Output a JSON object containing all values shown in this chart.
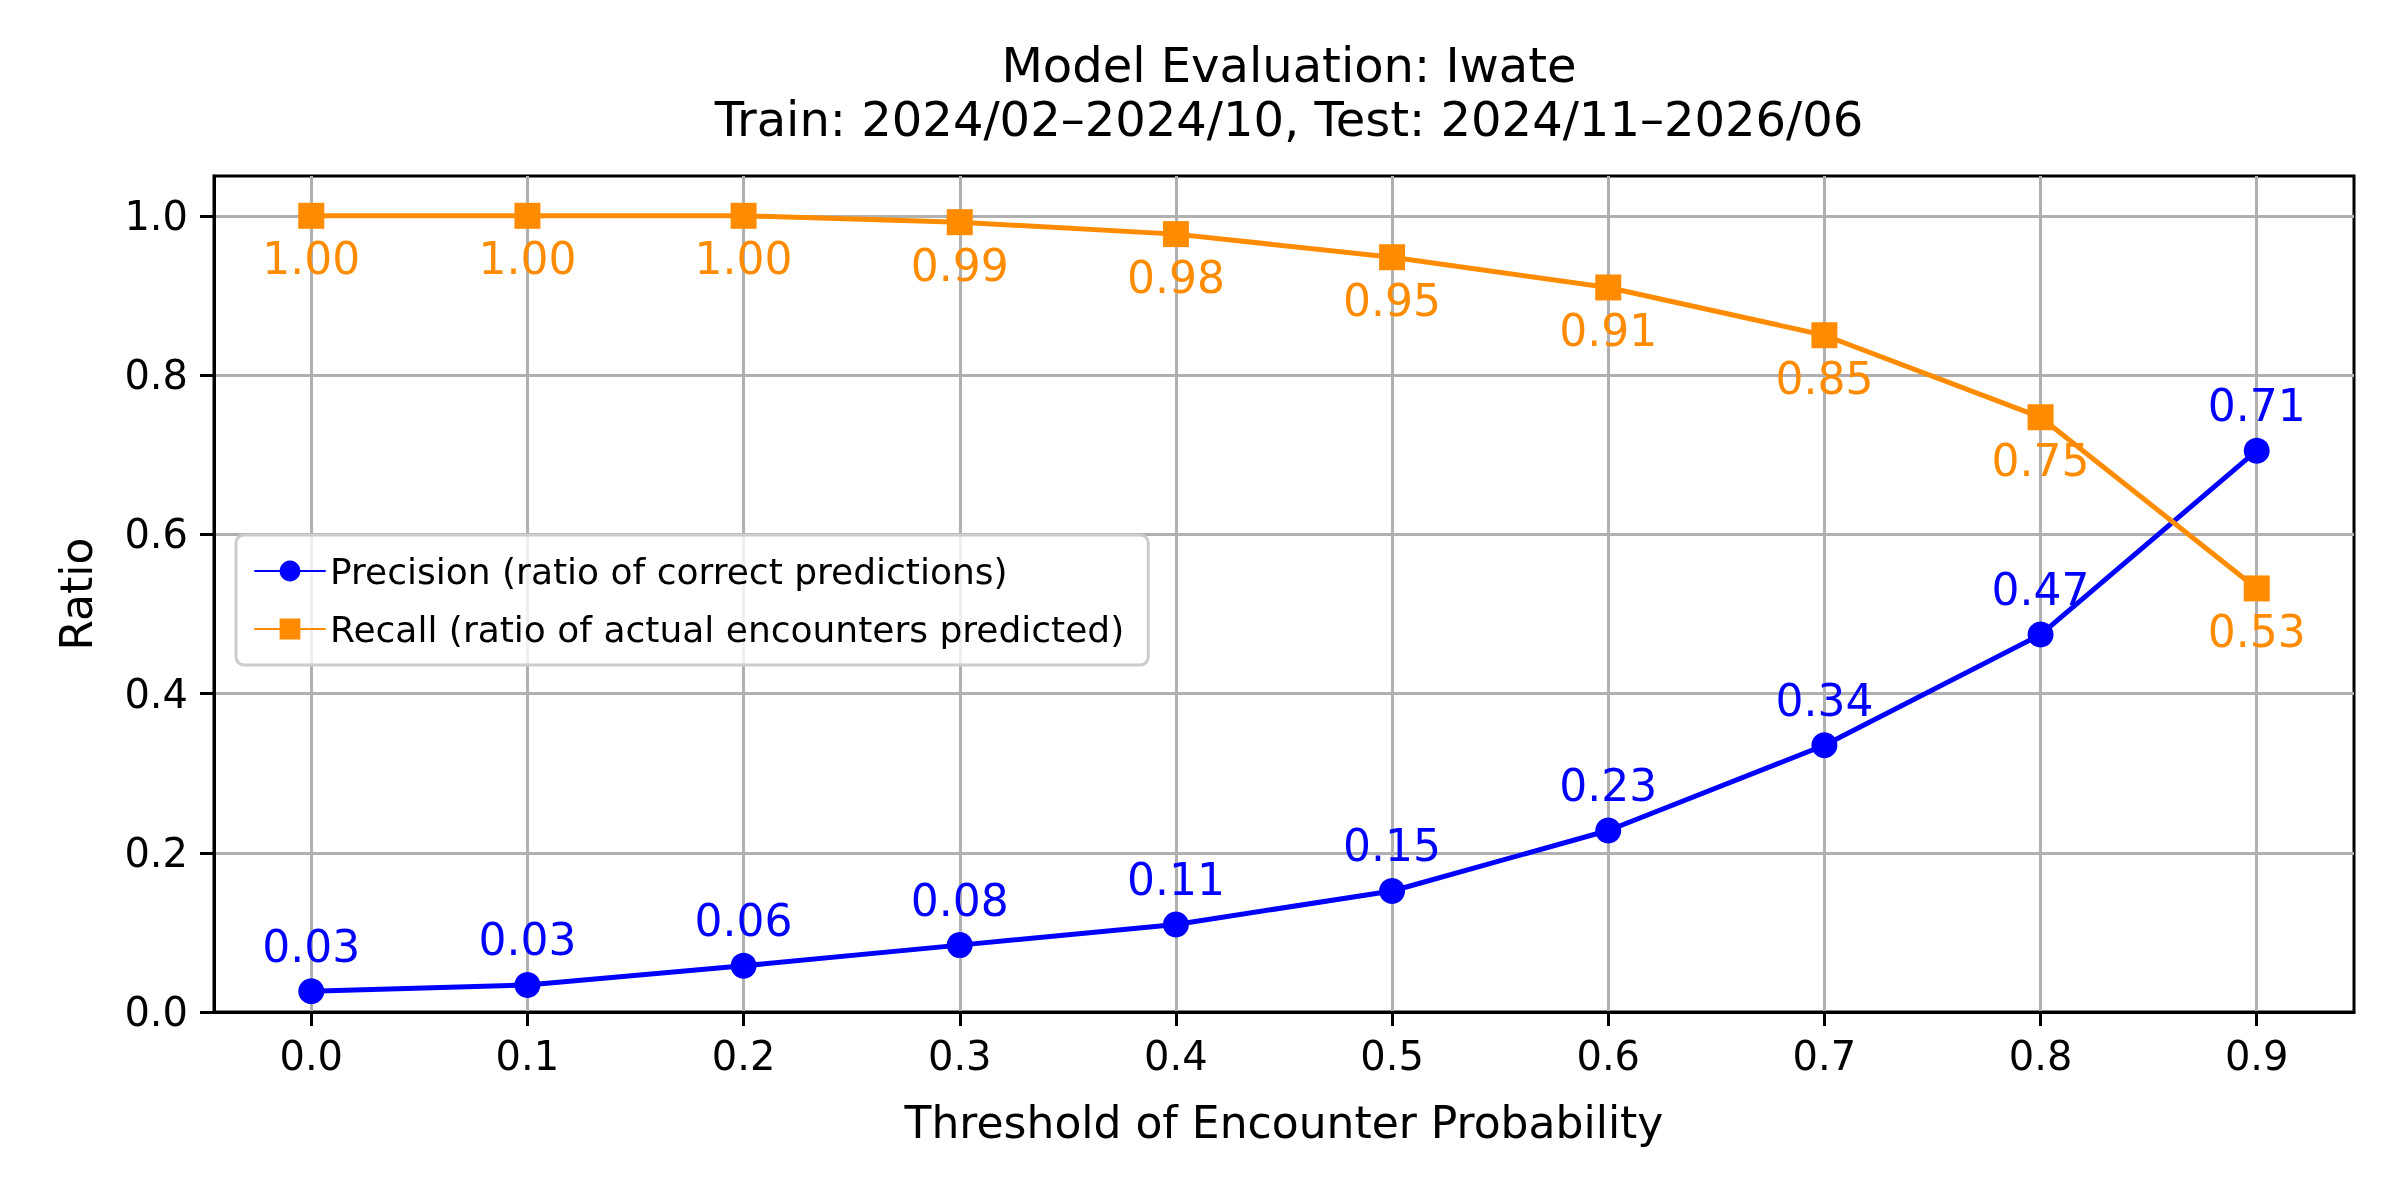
{
  "chart_data": {
    "type": "line",
    "title": "Model Evaluation: Iwate",
    "subtitle": "Train: 2024/02–2024/10, Test: 2024/11–2026/06",
    "xlabel": "Threshold of Encounter Probability",
    "ylabel": "Ratio",
    "x": [
      0,
      0.1,
      0.2,
      0.3,
      0.4,
      0.5,
      0.6,
      0.7,
      0.8,
      0.9
    ],
    "series": [
      {
        "name": "Precision (ratio of correct predictions)",
        "color": "#0000ff",
        "marker": "circle",
        "values": [
          0.026,
          0.034,
          0.058,
          0.084,
          0.11,
          0.152,
          0.228,
          0.335,
          0.474,
          0.705
        ],
        "value_labels": [
          "0.03",
          "0.03",
          "0.06",
          "0.08",
          "0.11",
          "0.15",
          "0.23",
          "0.34",
          "0.47",
          "0.71"
        ]
      },
      {
        "name": "Recall (ratio of actual encounters predicted)",
        "color": "#ff8c00",
        "marker": "square",
        "values": [
          1.0,
          1.0,
          1.0,
          0.992,
          0.977,
          0.948,
          0.91,
          0.85,
          0.747,
          0.532
        ],
        "value_labels": [
          "1.00",
          "1.00",
          "1.00",
          "0.99",
          "0.98",
          "0.95",
          "0.91",
          "0.85",
          "0.75",
          "0.53"
        ]
      }
    ],
    "xlim": [
      -0.045,
      0.945
    ],
    "ylim": [
      0,
      1.05
    ],
    "xticks": [
      {
        "value": 0,
        "label": "0.0"
      },
      0.1,
      0.2,
      0.3,
      0.4,
      0.5,
      0.6,
      0.7,
      0.8,
      0.9
    ],
    "yticks": [
      {
        "value": 0,
        "label": "0.0"
      },
      0.2,
      0.4,
      0.6,
      0.8,
      {
        "value": 1,
        "label": "1.0"
      }
    ],
    "grid": true,
    "legend": "left",
    "line_style": "solid"
  }
}
